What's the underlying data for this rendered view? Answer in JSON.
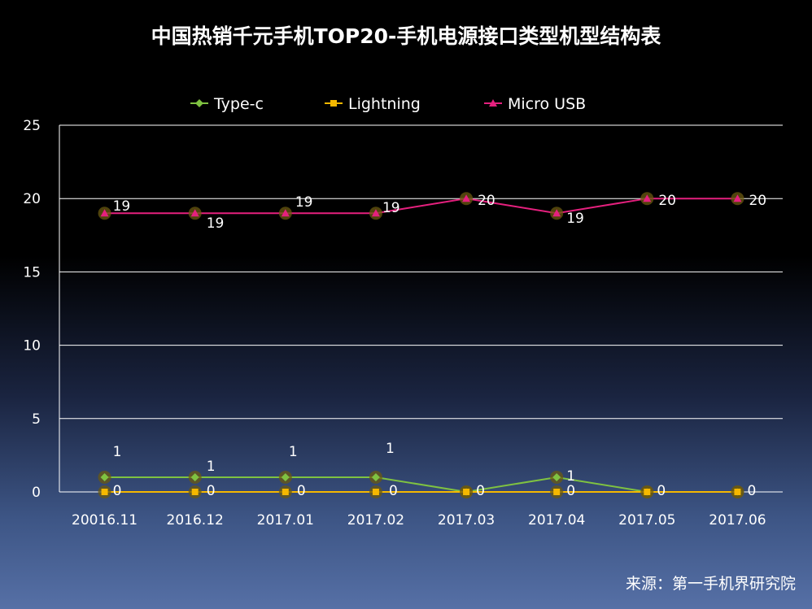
{
  "chart_data": {
    "type": "line",
    "title": "中国热销千元手机TOP20-手机电源接口类型机型结构表",
    "categories": [
      "20016.11",
      "2016.12",
      "2017.01",
      "2017.02",
      "2017.03",
      "2017.04",
      "2017.05",
      "2017.06"
    ],
    "series": [
      {
        "name": "Type-c",
        "color": "#7fc241",
        "marker": "diamond",
        "values": [
          1,
          1,
          1,
          1,
          0,
          1,
          0,
          0
        ]
      },
      {
        "name": "Lightning",
        "color": "#f5b800",
        "marker": "square",
        "values": [
          0,
          0,
          0,
          0,
          0,
          0,
          0,
          0
        ]
      },
      {
        "name": "Micro USB",
        "color": "#e5207e",
        "marker": "triangle",
        "values": [
          19,
          19,
          19,
          19,
          20,
          19,
          20,
          20
        ]
      }
    ],
    "ylim": [
      0,
      25
    ],
    "yticks": [
      "0",
      "5",
      "10",
      "15",
      "20",
      "25"
    ],
    "grid": true,
    "legend": "top-center",
    "source": "来源：第一手机界研究院"
  }
}
